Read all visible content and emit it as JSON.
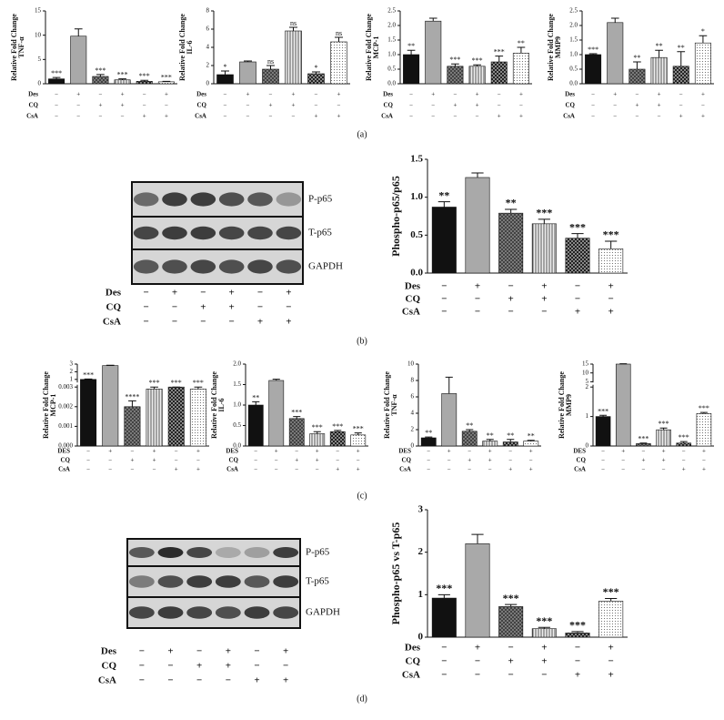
{
  "panel_labels": [
    "(a)",
    "(b)",
    "(c)",
    "(d)"
  ],
  "bar_fills": [
    "black",
    "gray",
    "crosshatch",
    "stripes",
    "checker",
    "dots"
  ],
  "blots": [
    {
      "labels": [
        "P-p65",
        "T-p65",
        "GAPDH"
      ],
      "conditions": [
        {
          "name": "Des",
          "values": [
            "−",
            "+",
            "−",
            "+",
            "−",
            "+"
          ]
        },
        {
          "name": "CQ",
          "values": [
            "−",
            "−",
            "+",
            "+",
            "−",
            "−"
          ]
        },
        {
          "name": "CsA",
          "values": [
            "−",
            "−",
            "−",
            "−",
            "+",
            "+"
          ]
        }
      ]
    },
    {
      "labels": [
        "P-p65",
        "T-p65",
        "GAPDH"
      ],
      "conditions": [
        {
          "name": "Des",
          "values": [
            "−",
            "+",
            "−",
            "+",
            "−",
            "+"
          ]
        },
        {
          "name": "CQ",
          "values": [
            "−",
            "−",
            "+",
            "+",
            "−",
            "−"
          ]
        },
        {
          "name": "CsA",
          "values": [
            "−",
            "−",
            "−",
            "−",
            "+",
            "+"
          ]
        }
      ]
    }
  ],
  "chart_data": [
    {
      "type": "bar",
      "ylabel": [
        "Relative Fold Change",
        "TNF-α"
      ],
      "values": [
        1.0,
        9.8,
        1.5,
        0.8,
        0.5,
        0.4
      ],
      "errors": [
        0.3,
        1.5,
        0.4,
        0.2,
        0.2,
        0.1
      ],
      "significance": [
        "***",
        null,
        "***",
        "***",
        "***",
        "***"
      ],
      "ylim": [
        0,
        15
      ],
      "yticks": [
        0,
        5,
        10,
        15
      ],
      "conditions": [
        {
          "name": "Des",
          "values": [
            "−",
            "+",
            "−",
            "+",
            "−",
            "+"
          ]
        },
        {
          "name": "CQ",
          "values": [
            "−",
            "−",
            "+",
            "+",
            "−",
            "−"
          ]
        },
        {
          "name": "CsA",
          "values": [
            "−",
            "−",
            "−",
            "−",
            "+",
            "+"
          ]
        }
      ]
    },
    {
      "type": "bar",
      "ylabel": [
        "Relative Fold Change",
        "IL-6"
      ],
      "values": [
        1.0,
        2.4,
        1.6,
        5.8,
        1.1,
        4.6
      ],
      "errors": [
        0.4,
        0.1,
        0.4,
        0.4,
        0.2,
        0.5
      ],
      "significance": [
        "*",
        null,
        "ns",
        "ns",
        "*",
        "ns"
      ],
      "ylim": [
        0,
        8
      ],
      "yticks": [
        0,
        2,
        4,
        6,
        8
      ],
      "conditions": [
        {
          "name": "Des",
          "values": [
            "−",
            "+",
            "−",
            "+",
            "−",
            "+"
          ]
        },
        {
          "name": "CQ",
          "values": [
            "−",
            "−",
            "+",
            "+",
            "−",
            "−"
          ]
        },
        {
          "name": "CsA",
          "values": [
            "−",
            "−",
            "−",
            "−",
            "+",
            "+"
          ]
        }
      ]
    },
    {
      "type": "bar",
      "ylabel": [
        "Relative Fold Change",
        "MCP-1"
      ],
      "values": [
        1.0,
        2.15,
        0.6,
        0.6,
        0.75,
        1.05
      ],
      "errors": [
        0.15,
        0.1,
        0.08,
        0.05,
        0.2,
        0.2
      ],
      "significance": [
        "**",
        null,
        "***",
        "***",
        "***",
        "**"
      ],
      "ylim": [
        0,
        2.5
      ],
      "yticks": [
        {
          "value": 0,
          "label": "0.0"
        },
        0.5,
        {
          "value": 1,
          "label": "1.0"
        },
        1.5,
        {
          "value": 2,
          "label": "2.0"
        },
        2.5
      ],
      "conditions": [
        {
          "name": "Des",
          "values": [
            "−",
            "+",
            "−",
            "+",
            "−",
            "+"
          ]
        },
        {
          "name": "CQ",
          "values": [
            "−",
            "−",
            "+",
            "+",
            "−",
            "−"
          ]
        },
        {
          "name": "CsA",
          "values": [
            "−",
            "−",
            "−",
            "−",
            "+",
            "+"
          ]
        }
      ]
    },
    {
      "type": "bar",
      "ylabel": [
        "Relative Fold Change",
        "MMP9"
      ],
      "values": [
        1.0,
        2.1,
        0.5,
        0.9,
        0.6,
        1.4
      ],
      "errors": [
        0.03,
        0.15,
        0.25,
        0.25,
        0.5,
        0.25
      ],
      "significance": [
        "***",
        null,
        "**",
        "**",
        "**",
        "*"
      ],
      "ylim": [
        0,
        2.5
      ],
      "yticks": [
        {
          "value": 0,
          "label": "0.0"
        },
        0.5,
        {
          "value": 1,
          "label": "1.0"
        },
        1.5,
        {
          "value": 2,
          "label": "2.0"
        },
        2.5
      ],
      "conditions": [
        {
          "name": "Des",
          "values": [
            "−",
            "+",
            "−",
            "+",
            "−",
            "+"
          ]
        },
        {
          "name": "CQ",
          "values": [
            "−",
            "−",
            "+",
            "+",
            "−",
            "−"
          ]
        },
        {
          "name": "CsA",
          "values": [
            "−",
            "−",
            "−",
            "−",
            "+",
            "+"
          ]
        }
      ]
    },
    {
      "type": "bar",
      "ylabel": [
        "Phospho-p65/p65"
      ],
      "values": [
        0.87,
        1.26,
        0.79,
        0.65,
        0.46,
        0.32
      ],
      "errors": [
        0.07,
        0.06,
        0.05,
        0.06,
        0.06,
        0.1
      ],
      "significance": [
        "**",
        null,
        "**",
        "***",
        "***",
        "***"
      ],
      "ylim": [
        0,
        1.5
      ],
      "yticks": [
        {
          "value": 0,
          "label": "0.0"
        },
        0.5,
        {
          "value": 1,
          "label": "1.0"
        },
        1.5
      ],
      "conditions": [
        {
          "name": "Des",
          "values": [
            "−",
            "+",
            "−",
            "+",
            "−",
            "+"
          ]
        },
        {
          "name": "CQ",
          "values": [
            "−",
            "−",
            "+",
            "+",
            "−",
            "−"
          ]
        },
        {
          "name": "CsA",
          "values": [
            "−",
            "−",
            "−",
            "−",
            "+",
            "+"
          ]
        }
      ]
    },
    {
      "type": "bar",
      "ylabel": [
        "Relative Fold Change",
        "MCP-1"
      ],
      "values": [
        1.0,
        2.8,
        0.002,
        0.0029,
        0.0031,
        0.0029
      ],
      "errors": [
        0.05,
        0.05,
        0.0003,
        0.0001,
        0.0001,
        0.0001
      ],
      "significance": [
        "***",
        null,
        "****",
        "***",
        "***",
        "***"
      ],
      "ylim": [
        0,
        3
      ],
      "y_break": 0.003,
      "yticks": [
        {
          "value": 0,
          "label": "0.000"
        },
        0.001,
        0.002,
        0.003,
        1,
        2,
        3
      ],
      "conditions": [
        {
          "name": "DES",
          "values": [
            "−",
            "+",
            "−",
            "+",
            "−",
            "+"
          ]
        },
        {
          "name": "CQ",
          "values": [
            "−",
            "−",
            "+",
            "+",
            "−",
            "−"
          ]
        },
        {
          "name": "CsA",
          "values": [
            "−",
            "−",
            "−",
            "−",
            "+",
            "+"
          ]
        }
      ]
    },
    {
      "type": "bar",
      "ylabel": [
        "Relative Fold Change",
        "IL-6"
      ],
      "values": [
        1.0,
        1.6,
        0.67,
        0.3,
        0.35,
        0.27
      ],
      "errors": [
        0.08,
        0.03,
        0.05,
        0.05,
        0.03,
        0.05
      ],
      "significance": [
        "**",
        null,
        "***",
        "***",
        "***",
        "***"
      ],
      "ylim": [
        0,
        2
      ],
      "yticks": [
        {
          "value": 0,
          "label": "0.0"
        },
        0.5,
        {
          "value": 1,
          "label": "1.0"
        },
        1.5,
        {
          "value": 2,
          "label": "2.0"
        }
      ],
      "conditions": [
        {
          "name": "DES",
          "values": [
            "−",
            "+",
            "−",
            "+",
            "−",
            "+"
          ]
        },
        {
          "name": "CQ",
          "values": [
            "−",
            "−",
            "+",
            "+",
            "−",
            "−"
          ]
        },
        {
          "name": "CsA",
          "values": [
            "−",
            "−",
            "−",
            "−",
            "+",
            "+"
          ]
        }
      ]
    },
    {
      "type": "bar",
      "ylabel": [
        "Relative Fold Change",
        "TNF-α"
      ],
      "values": [
        1.0,
        6.4,
        1.8,
        0.6,
        0.5,
        0.6
      ],
      "errors": [
        0.1,
        2.0,
        0.2,
        0.2,
        0.3,
        0.1
      ],
      "significance": [
        "**",
        null,
        "**",
        "**",
        "**",
        "**"
      ],
      "ylim": [
        0,
        10
      ],
      "yticks": [
        0,
        2,
        4,
        6,
        8,
        10
      ],
      "conditions": [
        {
          "name": "DES",
          "values": [
            "−",
            "+",
            "−",
            "+",
            "−",
            "+"
          ]
        },
        {
          "name": "CQ",
          "values": [
            "−",
            "−",
            "+",
            "+",
            "−",
            "−"
          ]
        },
        {
          "name": "CsA",
          "values": [
            "−",
            "−",
            "−",
            "−",
            "+",
            "+"
          ]
        }
      ]
    },
    {
      "type": "bar",
      "ylabel": [
        "Relative Fold Change",
        "MMP9"
      ],
      "values": [
        1.0,
        15,
        0.08,
        0.55,
        0.1,
        1.1
      ],
      "errors": [
        0.04,
        0.2,
        0.02,
        0.06,
        0.05,
        0.04
      ],
      "significance": [
        "***",
        null,
        "***",
        "***",
        "***",
        "***"
      ],
      "ylim": [
        0,
        15
      ],
      "y_break": 2,
      "yticks": [
        0,
        1,
        2,
        5,
        10,
        15
      ],
      "conditions": [
        {
          "name": "DES",
          "values": [
            "−",
            "+",
            "−",
            "+",
            "−",
            "+"
          ]
        },
        {
          "name": "CQ",
          "values": [
            "−",
            "−",
            "+",
            "+",
            "−",
            "−"
          ]
        },
        {
          "name": "CsA",
          "values": [
            "−",
            "−",
            "−",
            "−",
            "+",
            "+"
          ]
        }
      ]
    },
    {
      "type": "bar",
      "ylabel": [
        "Phospho-p65 vs T-p65"
      ],
      "values": [
        0.92,
        2.2,
        0.72,
        0.2,
        0.1,
        0.85
      ],
      "errors": [
        0.08,
        0.22,
        0.05,
        0.03,
        0.03,
        0.06
      ],
      "significance": [
        "***",
        null,
        "***",
        "***",
        "***",
        "***"
      ],
      "ylim": [
        0,
        3
      ],
      "yticks": [
        0,
        1,
        2,
        3
      ],
      "conditions": [
        {
          "name": "Des",
          "values": [
            "−",
            "+",
            "−",
            "+",
            "−",
            "+"
          ]
        },
        {
          "name": "CQ",
          "values": [
            "−",
            "−",
            "+",
            "+",
            "−",
            "−"
          ]
        },
        {
          "name": "CsA",
          "values": [
            "−",
            "−",
            "−",
            "−",
            "+",
            "+"
          ]
        }
      ]
    }
  ]
}
